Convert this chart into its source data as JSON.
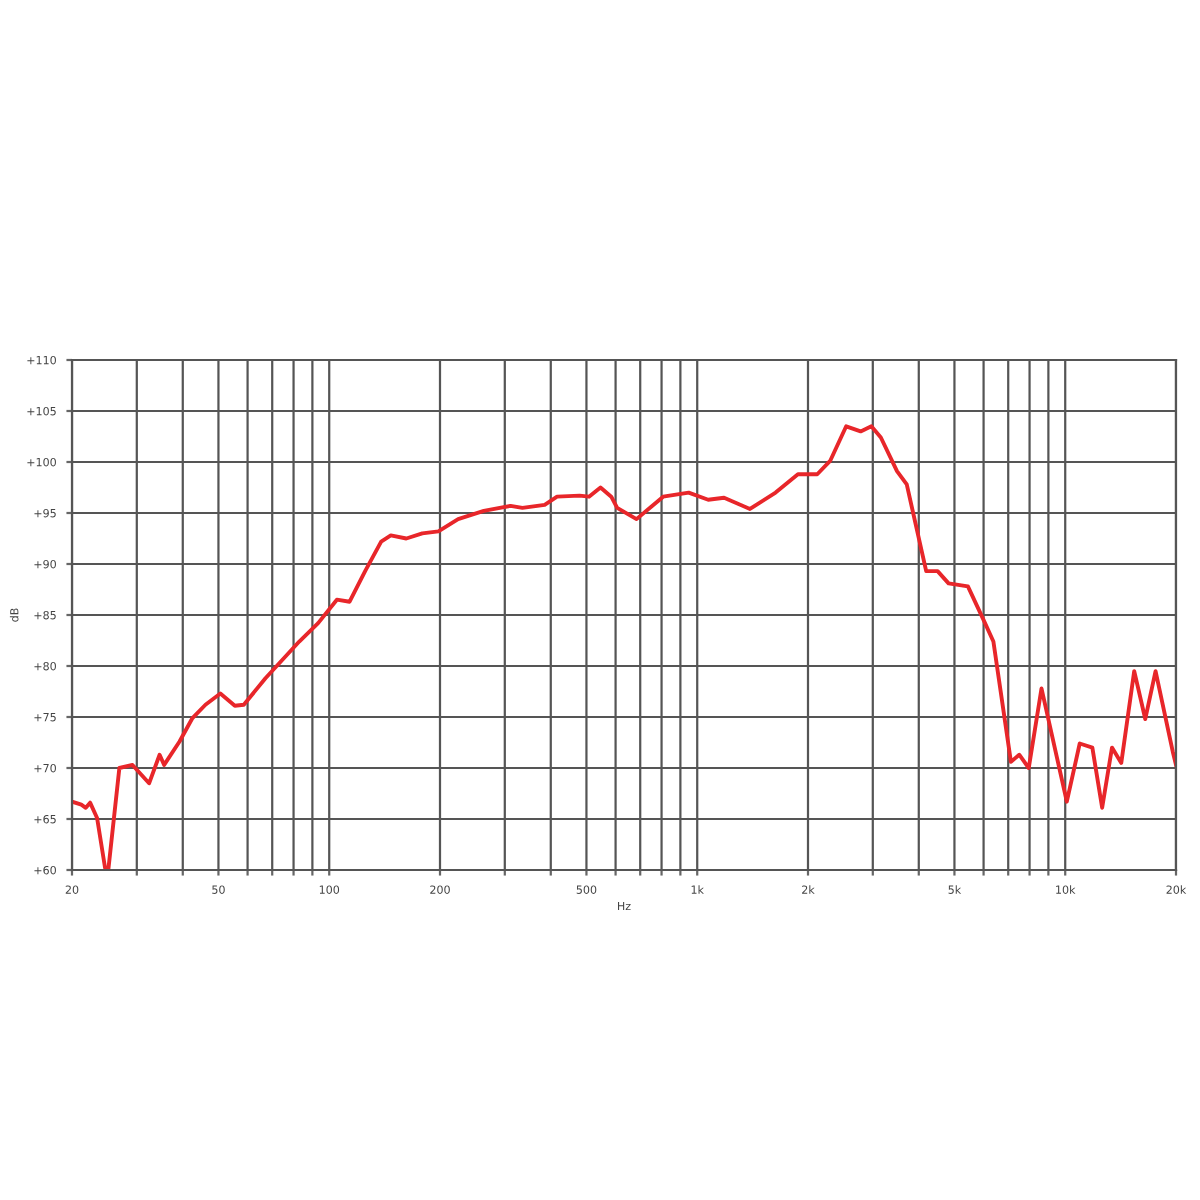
{
  "chart_data": {
    "type": "line",
    "xlabel": "Hz",
    "ylabel": "dB",
    "log": "x",
    "grid": true,
    "marker": "none",
    "line_style": "solid",
    "legend": false,
    "xlim": [
      20,
      20000
    ],
    "ylim": [
      60,
      110
    ],
    "xticks": [
      20,
      50,
      100,
      200,
      500,
      {
        "value": 1000,
        "label": "1k"
      },
      {
        "value": 2000,
        "label": "2k"
      },
      {
        "value": 5000,
        "label": "5k"
      },
      {
        "value": 10000,
        "label": "10k"
      },
      {
        "value": 20000,
        "label": "20k"
      },
      {
        "value": 30,
        "label": null
      },
      {
        "value": 40,
        "label": null
      },
      {
        "value": 60,
        "label": null
      },
      {
        "value": 70,
        "label": null
      },
      {
        "value": 80,
        "label": null
      },
      {
        "value": 90,
        "label": null
      },
      {
        "value": 300,
        "label": null
      },
      {
        "value": 400,
        "label": null
      },
      {
        "value": 600,
        "label": null
      },
      {
        "value": 700,
        "label": null
      },
      {
        "value": 800,
        "label": null
      },
      {
        "value": 900,
        "label": null
      },
      {
        "value": 3000,
        "label": null
      },
      {
        "value": 4000,
        "label": null
      },
      {
        "value": 6000,
        "label": null
      },
      {
        "value": 7000,
        "label": null
      },
      {
        "value": 8000,
        "label": null
      },
      {
        "value": 9000,
        "label": null
      }
    ],
    "yticks": [
      {
        "value": 60,
        "label": "+60"
      },
      {
        "value": 65,
        "label": "+65"
      },
      {
        "value": 70,
        "label": "+70"
      },
      {
        "value": 75,
        "label": "+75"
      },
      {
        "value": 80,
        "label": "+80"
      },
      {
        "value": 85,
        "label": "+85"
      },
      {
        "value": 90,
        "label": "+90"
      },
      {
        "value": 95,
        "label": "+95"
      },
      {
        "value": 100,
        "label": "+100"
      },
      {
        "value": 105,
        "label": "+105"
      },
      {
        "value": 110,
        "label": "+110"
      }
    ],
    "series": [
      {
        "color": "#e8262a",
        "x": [
          20,
          21.2,
          21.8,
          22.4,
          23.4,
          24.6,
          25.1,
          26.9,
          29.2,
          32.4,
          34.6,
          35.6,
          39.2,
          42.5,
          46.1,
          50.6,
          55.4,
          58.6,
          67.1,
          82.9,
          93.3,
          104.9,
          113.6,
          125.2,
          138.4,
          147,
          162,
          179,
          198,
          224,
          263,
          311,
          335,
          385,
          416,
          479,
          508,
          546,
          584,
          606,
          684,
          808,
          948,
          1071,
          1183,
          1391,
          1633,
          1878,
          2119,
          2297,
          2540,
          2780,
          2973,
          3155,
          3490,
          3710,
          4190,
          4500,
          4820,
          5440,
          6020,
          6380,
          7120,
          7500,
          7960,
          8620,
          10100,
          10950,
          11850,
          12600,
          13400,
          14200,
          15400,
          16500,
          17600,
          19600,
          20000
        ],
        "values": [
          66.7,
          66.4,
          66.1,
          66.6,
          65.1,
          60.2,
          60,
          70,
          70.3,
          68.5,
          71.3,
          70.3,
          72.6,
          74.9,
          76.2,
          77.3,
          76.1,
          76.2,
          78.8,
          82.4,
          84.2,
          86.5,
          86.3,
          89.3,
          92.2,
          92.8,
          92.5,
          93.0,
          93.2,
          94.4,
          95.2,
          95.7,
          95.5,
          95.8,
          96.6,
          96.7,
          96.6,
          97.5,
          96.6,
          95.5,
          94.4,
          96.6,
          97.0,
          96.3,
          96.5,
          95.4,
          97.0,
          98.8,
          98.8,
          100.1,
          103.5,
          103.0,
          103.5,
          102.4,
          99.1,
          97.8,
          89.3,
          89.3,
          88.1,
          87.8,
          84.4,
          82.4,
          70.6,
          71.3,
          70.0,
          77.8,
          66.7,
          72.4,
          72.0,
          66.1,
          72.0,
          70.5,
          79.5,
          74.8,
          79.5,
          71.6,
          70.3
        ]
      }
    ]
  }
}
